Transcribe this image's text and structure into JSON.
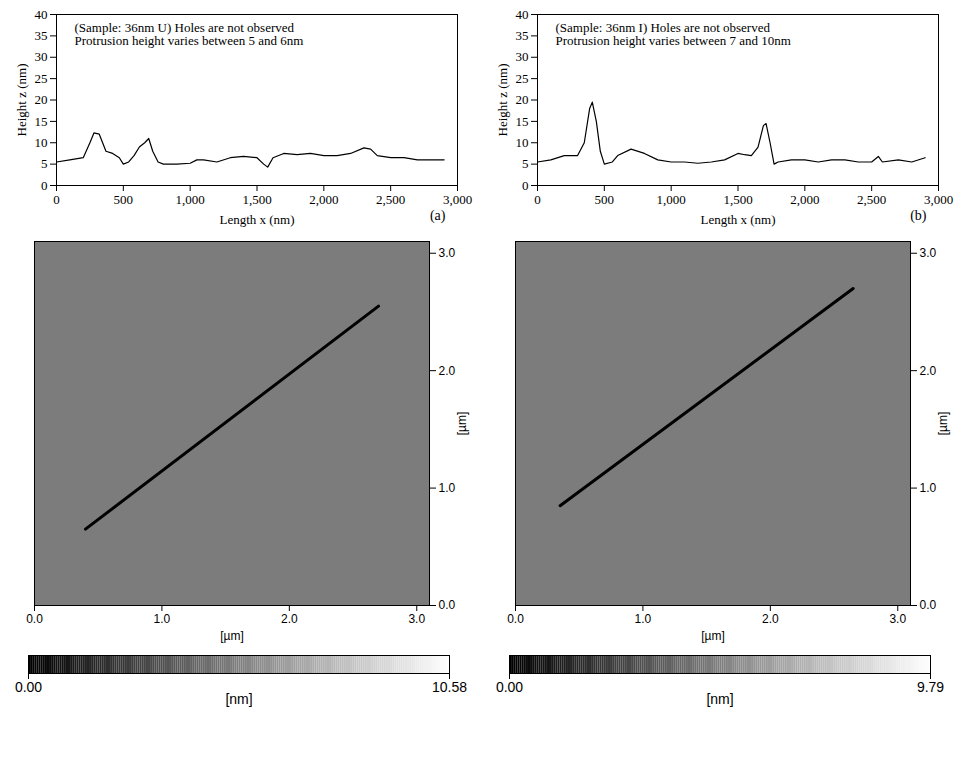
{
  "chart_data": [
    {
      "type": "line",
      "panel": "(a)",
      "annotation": [
        "(Sample: 36nm U) Holes are not observed",
        "Protrusion height varies between 5 and 6nm"
      ],
      "xlabel": "Length x (nm)",
      "ylabel": "Height z (nm)",
      "xlim": [
        0,
        3000
      ],
      "ylim": [
        0,
        40
      ],
      "xticks": [
        0,
        500,
        1000,
        1500,
        2000,
        2500,
        3000
      ],
      "yticks": [
        0,
        5,
        10,
        15,
        20,
        25,
        30,
        35,
        40
      ],
      "x": [
        0,
        100,
        200,
        250,
        280,
        320,
        370,
        420,
        470,
        500,
        540,
        580,
        620,
        660,
        690,
        720,
        760,
        800,
        900,
        1000,
        1050,
        1100,
        1200,
        1300,
        1400,
        1500,
        1550,
        1580,
        1620,
        1700,
        1800,
        1900,
        2000,
        2100,
        2200,
        2300,
        2350,
        2400,
        2500,
        2600,
        2700,
        2800,
        2900
      ],
      "series": [
        {
          "color": "#000000",
          "values": [
            5.5,
            6,
            6.5,
            10,
            12.3,
            12,
            8,
            7.5,
            6.5,
            5,
            5.5,
            7,
            9,
            10,
            11,
            8,
            5.5,
            5,
            5,
            5.2,
            6,
            6,
            5.5,
            6.5,
            6.8,
            6.5,
            5,
            4.3,
            6.5,
            7.5,
            7.2,
            7.5,
            7,
            7,
            7.5,
            8.8,
            8.5,
            7,
            6.5,
            6.5,
            6,
            6,
            6
          ]
        }
      ]
    },
    {
      "type": "line",
      "panel": "(b)",
      "annotation": [
        "(Sample: 36nm I) Holes are not observed",
        "Protrusion height varies between 7 and 10nm"
      ],
      "xlabel": "Length x (nm)",
      "ylabel": "Height z (nm)",
      "xlim": [
        0,
        3000
      ],
      "ylim": [
        0,
        40
      ],
      "xticks": [
        0,
        500,
        1000,
        1500,
        2000,
        2500,
        3000
      ],
      "yticks": [
        0,
        5,
        10,
        15,
        20,
        25,
        30,
        35,
        40
      ],
      "x": [
        0,
        100,
        200,
        300,
        350,
        390,
        410,
        440,
        470,
        500,
        560,
        600,
        700,
        800,
        900,
        1000,
        1100,
        1200,
        1300,
        1400,
        1500,
        1550,
        1600,
        1650,
        1690,
        1710,
        1740,
        1770,
        1800,
        1900,
        2000,
        2100,
        2200,
        2300,
        2400,
        2500,
        2550,
        2580,
        2700,
        2800,
        2900
      ],
      "series": [
        {
          "color": "#000000",
          "values": [
            5.5,
            6,
            7,
            7,
            10,
            18,
            19.5,
            15,
            8,
            5,
            5.5,
            7,
            8.5,
            7.5,
            6,
            5.5,
            5.5,
            5.2,
            5.5,
            6,
            7.5,
            7.2,
            7,
            9,
            14,
            14.5,
            10,
            5,
            5.5,
            6,
            6,
            5.5,
            6,
            6,
            5.5,
            5.5,
            6.8,
            5.5,
            6,
            5.5,
            6.5
          ]
        }
      ]
    },
    {
      "type": "image",
      "xlabel": "[µm]",
      "ylabel": "[µm]",
      "xlim": [
        0,
        3.1
      ],
      "ylim": [
        0,
        3.1
      ],
      "xticks": [
        0,
        1,
        2,
        3
      ],
      "yticks": [
        0,
        1,
        2,
        3
      ],
      "scan_line": {
        "x": [
          0.4,
          2.7
        ],
        "y": [
          0.65,
          2.55
        ],
        "color": "#000000"
      },
      "colorbar": {
        "range": [
          0,
          10.58
        ],
        "label": "[nm]",
        "ticks": [
          {
            "value": 0,
            "label": "0.00"
          },
          {
            "value": 10.58,
            "label": "10.58"
          }
        ]
      }
    },
    {
      "type": "image",
      "xlabel": "[µm]",
      "ylabel": "[µm]",
      "xlim": [
        0,
        3.1
      ],
      "ylim": [
        0,
        3.1
      ],
      "xticks": [
        0,
        1,
        2,
        3
      ],
      "yticks": [
        0,
        1,
        2,
        3
      ],
      "scan_line": {
        "x": [
          0.35,
          2.65
        ],
        "y": [
          0.85,
          2.7
        ],
        "color": "#000000"
      },
      "colorbar": {
        "range": [
          0,
          9.79
        ],
        "label": "[nm]",
        "ticks": [
          {
            "value": 0,
            "label": "0.00"
          },
          {
            "value": 9.79,
            "label": "9.79"
          }
        ]
      }
    }
  ]
}
